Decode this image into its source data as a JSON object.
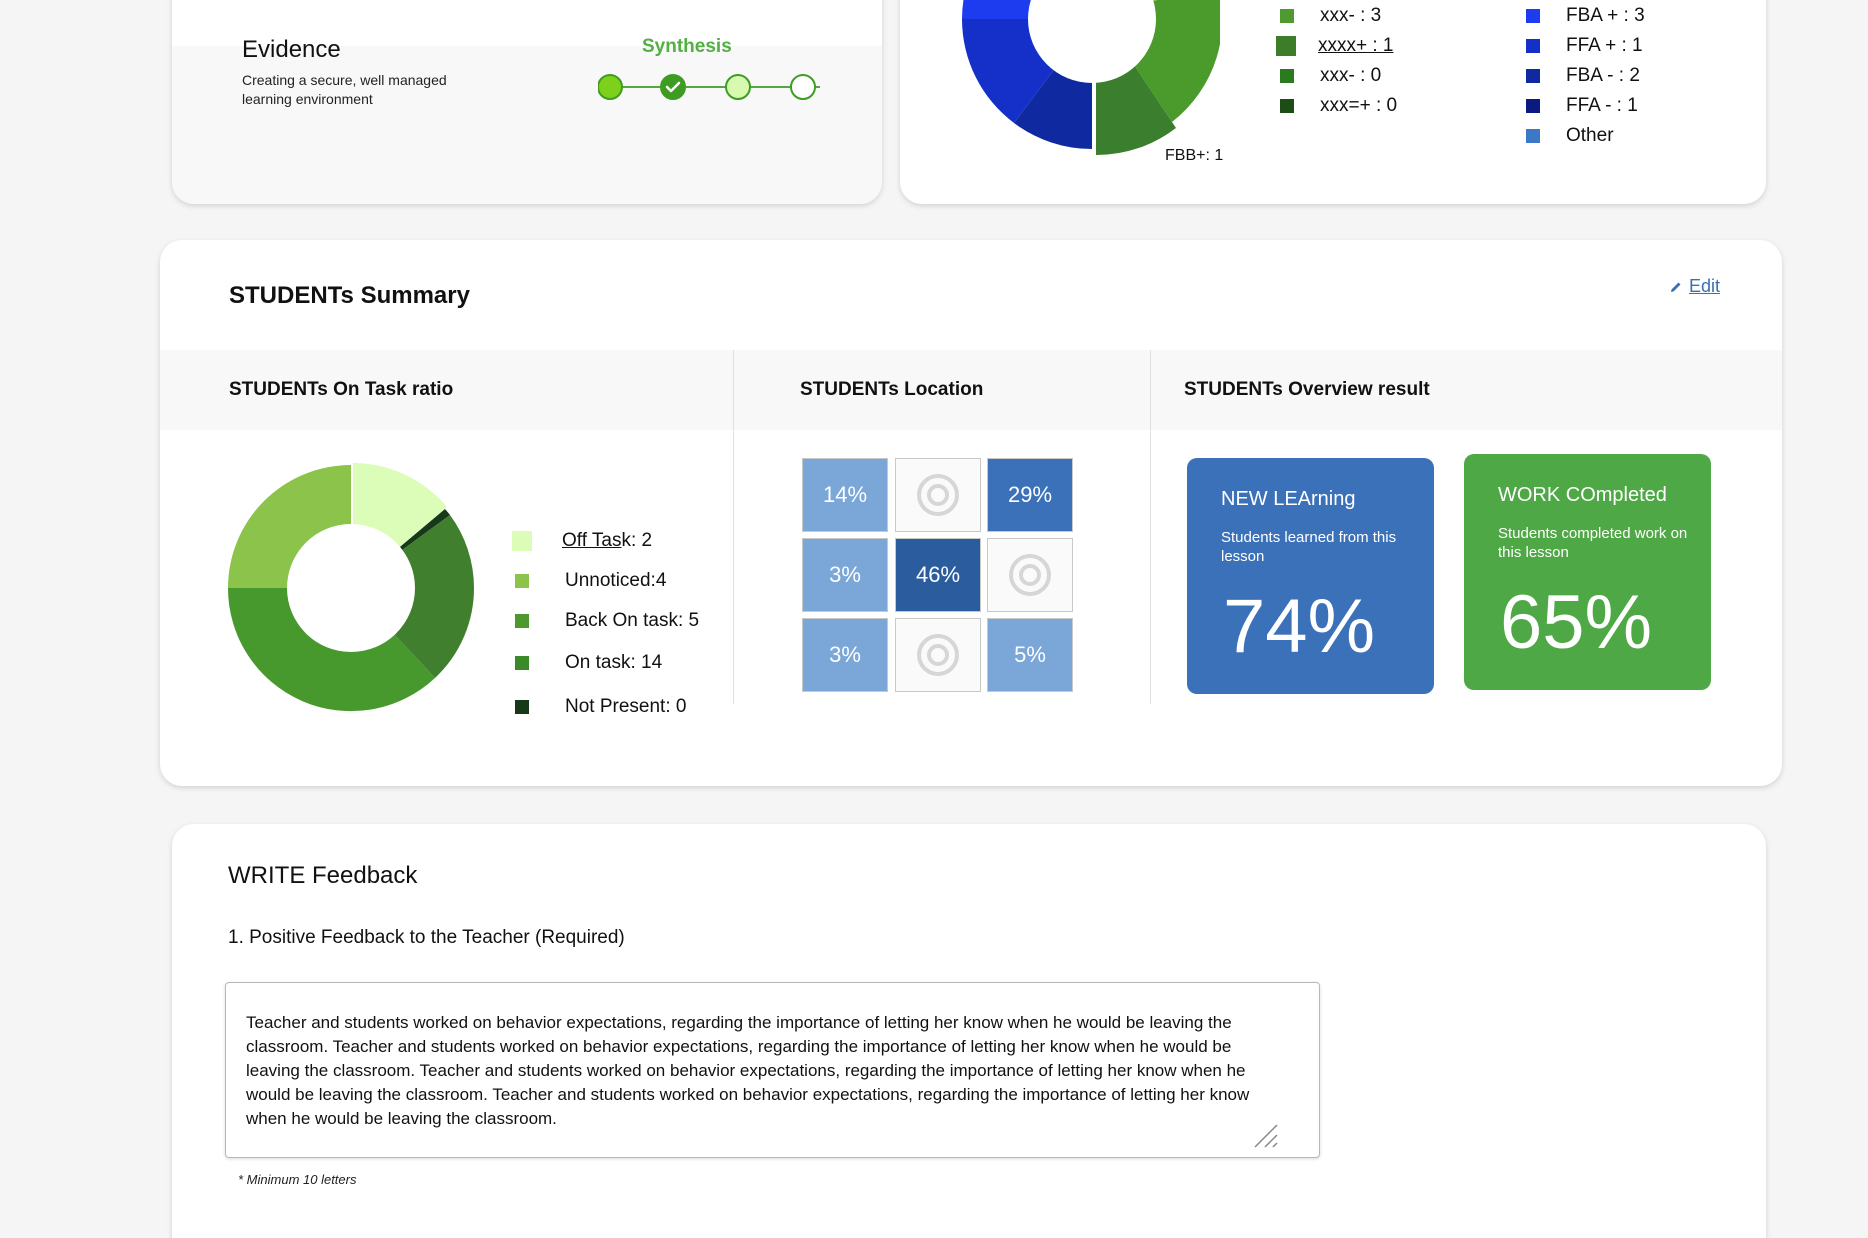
{
  "evidence": {
    "title": "Evidence",
    "description": "Creating a secure, well managed learning environment",
    "step_label": "Synthesis"
  },
  "feedback_chart": {
    "slice_label": "FBB+: 1",
    "legend_left": [
      {
        "label": "xxx- : 3",
        "color": "#4f9a2e"
      },
      {
        "label": "xxxx+ : 1",
        "color": "#3d7d2a"
      },
      {
        "label": "xxx- : 0",
        "color": "#2a7a1e"
      },
      {
        "label": "xxx=+ : 0",
        "color": "#1b4d14"
      }
    ],
    "legend_right": [
      {
        "label": "FBA + : 3",
        "color": "#1d3cf0"
      },
      {
        "label": "FFA + : 1",
        "color": "#1530c8"
      },
      {
        "label": "FBA - : 2",
        "color": "#0f2aa0"
      },
      {
        "label": "FFA - : 1",
        "color": "#0a1a80"
      },
      {
        "label": "Other",
        "color": "#3b78c8"
      }
    ]
  },
  "summary": {
    "title": "STUDENTs Summary",
    "edit_label": "Edit",
    "on_task": {
      "heading": "STUDENTs On Task ratio",
      "legend": [
        {
          "label_u": "Off Tas",
          "label_rest": "k: 2",
          "color": "#dcfdb8"
        },
        {
          "label_u": "",
          "label_rest": "Unnoticed:4",
          "color": "#8cc34a"
        },
        {
          "label_u": "",
          "label_rest": "Back On task: 5",
          "color": "#4c9a2e"
        },
        {
          "label_u": "",
          "label_rest": "On task: 14",
          "color": "#3a8a2a"
        },
        {
          "label_u": "",
          "label_rest": "Not Present: 0",
          "color": "#16391a"
        }
      ]
    },
    "location": {
      "heading": "STUDENTs Location",
      "cells": [
        "14%",
        "",
        "29%",
        "3%",
        "46%",
        "",
        "3%",
        "",
        "5%"
      ]
    },
    "overview": {
      "heading": "STUDENTs Overview result",
      "learning": {
        "title": "NEW LEArning",
        "desc": "Students learned from this lesson",
        "value": "74%",
        "color": "#3b71b9"
      },
      "work": {
        "title": "WORK COmpleted",
        "desc": "Students completed work on this lesson",
        "value": "65%",
        "color": "#4ea845"
      }
    }
  },
  "write_feedback": {
    "title": "WRITE Feedback",
    "question": "1. Positive Feedback to the Teacher (Required)",
    "text": "Teacher and students worked on behavior expectations, regarding the importance of letting her know when he would be leaving the classroom. Teacher and students worked on behavior expectations, regarding the importance of letting her know when he would be leaving the classroom. Teacher and students worked on behavior expectations, regarding the importance of letting her know when he would be leaving the classroom. Teacher and students worked on behavior expectations, regarding the importance of letting her know when he would be leaving the classroom.",
    "note": "* Minimum 10 letters"
  }
}
